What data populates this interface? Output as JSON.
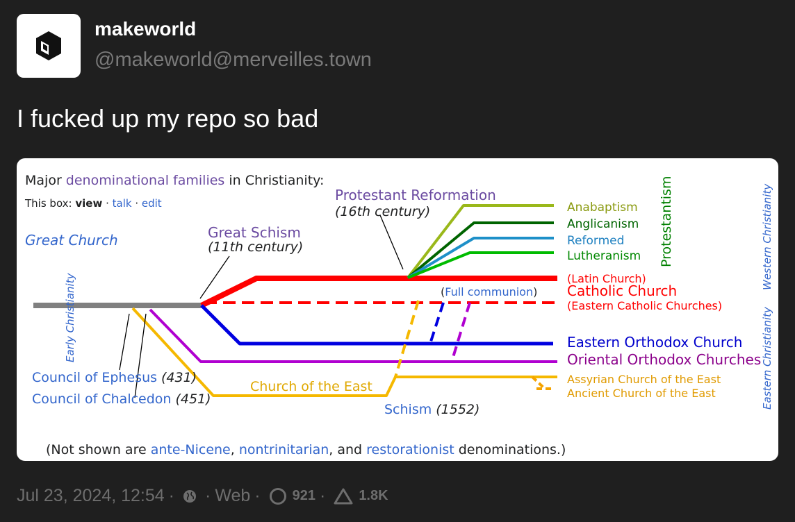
{
  "author": {
    "display_name": "makeworld",
    "handle": "@makeworld@merveilles.town"
  },
  "post": {
    "text": "I fucked up my repo so bad"
  },
  "image": {
    "header_prefix": "Major ",
    "header_link": "denominational families",
    "header_suffix": " in Christianity:",
    "box_prefix": "This box: ",
    "box_view": "view",
    "box_dot": " · ",
    "box_talk": "talk",
    "box_edit": "edit",
    "great_church": "Great Church",
    "early_christianity": "Early Christianity",
    "great_schism": "Great Schism",
    "great_schism_century": "(11th century)",
    "protestant_reformation": "Protestant Reformation",
    "reformation_century": "(16th century)",
    "anabaptism": "Anabaptism",
    "anglicanism": "Anglicanism",
    "reformed": "Reformed",
    "lutheranism": "Lutheranism",
    "protestantism": "Protestantism",
    "latin_church": "(Latin Church)",
    "catholic_church": "Catholic Church",
    "eastern_catholic": "(Eastern Catholic Churches)",
    "full_communion_open": "(",
    "full_communion": "Full communion",
    "full_communion_close": ")",
    "eastern_orthodox": "Eastern Orthodox Church",
    "oriental_orthodox": "Oriental Orthodox Churches",
    "assyrian": "Assyrian Church of the East",
    "ancient": "Ancient Church of the East",
    "church_of_the_east": "Church of the East",
    "schism": "Schism",
    "schism_year": "(1552)",
    "ephesus": "Council of Ephesus",
    "ephesus_year": "(431)",
    "chalcedon": "Council of Chalcedon",
    "chalcedon_year": "(451)",
    "western_christianity": "Western Christianity",
    "eastern_christianity": "Eastern Christianity",
    "footer_prefix": "(Not shown are ",
    "footer_link1": "ante-Nicene",
    "footer_sep1": ", ",
    "footer_link2": "nontrinitarian",
    "footer_sep2": ", and ",
    "footer_link3": "restorationist",
    "footer_suffix": " denominations.)"
  },
  "meta": {
    "timestamp": "Jul 23, 2024, 12:54",
    "dot": "·",
    "visibility_icon": "globe-icon",
    "client": "Web",
    "replies_icon": "reply-circle-icon",
    "replies": "921",
    "boosts_icon": "triangle-icon",
    "boosts": "1.8K"
  },
  "colors": {
    "background": "#1f1f1f",
    "link_blue": "#3366cc",
    "link_purple": "#6b4ba1",
    "catholic_red": "#ff0000",
    "orthodox_blue": "#0000e0",
    "oriental_purple": "#b000d0",
    "east_orange": "#f5a300",
    "protestant_green": "#008000"
  }
}
